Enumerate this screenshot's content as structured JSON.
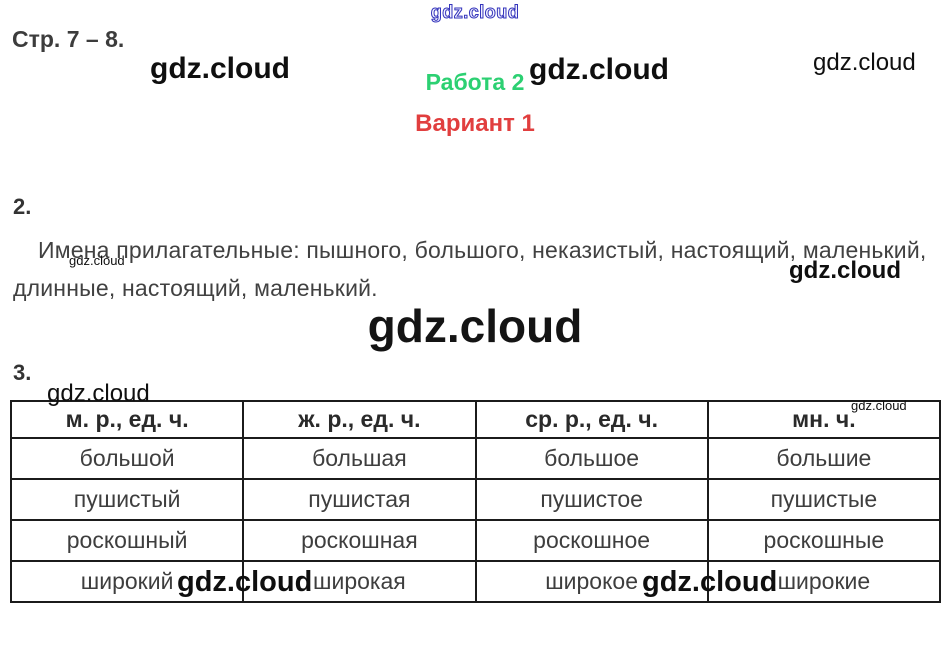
{
  "watermark": {
    "text": "gdz.cloud"
  },
  "header": {
    "page_ref": "Стр. 7 – 8.",
    "work_title": "Работа 2",
    "variant_title": "Вариант 1"
  },
  "colors": {
    "work_title_green": "#2cd072",
    "variant_title_red": "#e13e3e",
    "watermark_outline_blue": "#3333bb",
    "body_text": "#414141",
    "table_border": "#1b1b1b"
  },
  "section2": {
    "number": "2.",
    "lines": [
      "Имена прилагательные: пышного, большого, неказистый, настоящий, маленький,",
      "длинные, настоящий, маленький."
    ]
  },
  "section3": {
    "number": "3.",
    "table": {
      "headers": [
        "м. р., ед. ч.",
        "ж. р., ед. ч.",
        "ср. р., ед. ч.",
        "мн. ч."
      ],
      "rows": [
        [
          "большой",
          "большая",
          "большое",
          "большие"
        ],
        [
          "пушистый",
          "пушистая",
          "пушистое",
          "пушистые"
        ],
        [
          "роскошный",
          "роскошная",
          "роскошное",
          "роскошные"
        ],
        [
          "широкий",
          "широкая",
          "широкое",
          "широкие"
        ]
      ]
    }
  }
}
